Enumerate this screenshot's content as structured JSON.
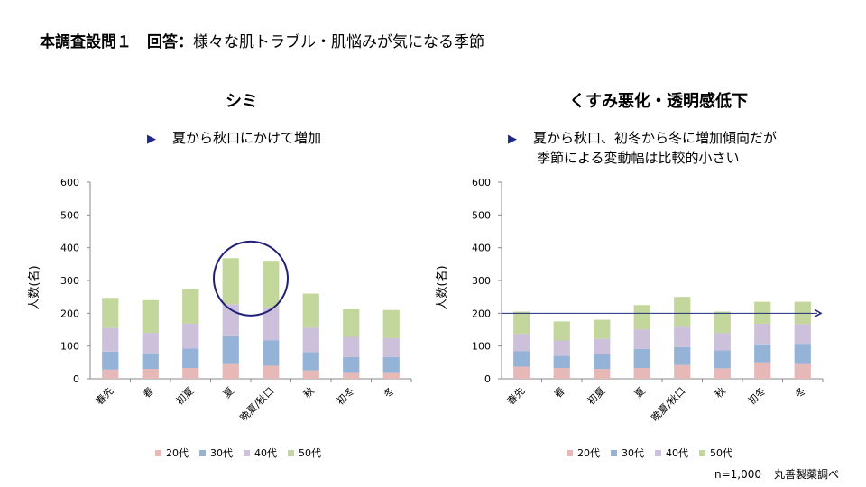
{
  "title": {
    "bold": "本調査設問１　回答：",
    "rest": "様々な肌トラブル・肌悩みが気になる季節"
  },
  "colors": {
    "20代": "#e6b8b7",
    "30代": "#95b3d7",
    "40代": "#ccc0da",
    "50代": "#c3d69b",
    "accent": "#1f1f7a"
  },
  "footer": {
    "n": "n=1,000",
    "source": "丸善製薬調べ"
  },
  "chart_data": [
    {
      "type": "bar",
      "stacked": true,
      "title": "シミ",
      "note": [
        "夏から秋口にかけて増加"
      ],
      "ylabel": "人数(名)",
      "ylim": [
        0,
        600
      ],
      "yticks": [
        0,
        100,
        200,
        300,
        400,
        500,
        600
      ],
      "categories": [
        "春先",
        "春",
        "初夏",
        "夏",
        "晩夏/秋口",
        "秋",
        "初冬",
        "冬"
      ],
      "series": [
        {
          "name": "20代",
          "values": [
            28,
            30,
            33,
            45,
            40,
            26,
            18,
            18
          ]
        },
        {
          "name": "30代",
          "values": [
            55,
            48,
            60,
            85,
            78,
            55,
            48,
            48
          ]
        },
        {
          "name": "40代",
          "values": [
            72,
            62,
            75,
            98,
            100,
            75,
            62,
            58
          ]
        },
        {
          "name": "50代",
          "values": [
            92,
            100,
            107,
            140,
            142,
            104,
            84,
            86
          ]
        }
      ],
      "highlight": {
        "categories": [
          "夏",
          "晩夏/秋口"
        ],
        "shape": "circle"
      },
      "legend": "bottom"
    },
    {
      "type": "bar",
      "stacked": true,
      "title": "くすみ悪化・透明感低下",
      "note": [
        "夏から秋口、初冬から冬に増加傾向だが",
        "季節による変動幅は比較的小さい"
      ],
      "ylabel": "人数(名)",
      "ylim": [
        0,
        600
      ],
      "yticks": [
        0,
        100,
        200,
        300,
        400,
        500,
        600
      ],
      "categories": [
        "春先",
        "春",
        "初夏",
        "夏",
        "晩夏/秋口",
        "秋",
        "初冬",
        "冬"
      ],
      "series": [
        {
          "name": "20代",
          "values": [
            37,
            33,
            30,
            33,
            42,
            32,
            50,
            45
          ]
        },
        {
          "name": "30代",
          "values": [
            47,
            37,
            45,
            58,
            55,
            55,
            55,
            62
          ]
        },
        {
          "name": "40代",
          "values": [
            53,
            47,
            47,
            60,
            62,
            53,
            63,
            60
          ]
        },
        {
          "name": "50代",
          "values": [
            68,
            58,
            58,
            74,
            91,
            65,
            67,
            68
          ]
        }
      ],
      "reference_line": {
        "value": 200,
        "arrow": "right"
      },
      "legend": "bottom"
    }
  ]
}
